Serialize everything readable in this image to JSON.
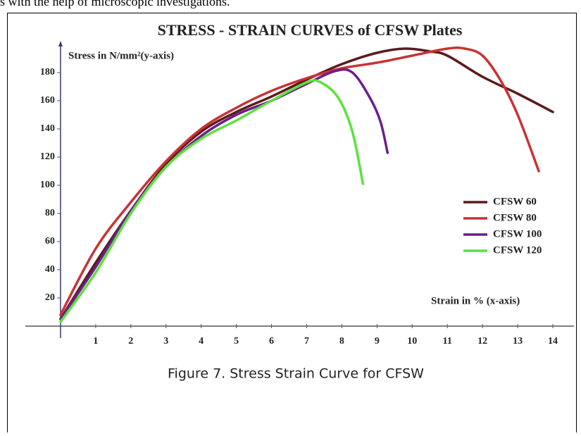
{
  "page_text": "s with the help of microscopic investigations.",
  "caption": "Figure 7. Stress Strain Curve for CFSW",
  "chart_data": {
    "type": "line",
    "title": "STRESS - STRAIN CURVES of CFSW Plates",
    "y_label": "Stress in N/mm²(y-axis)",
    "x_label": "Strain in % (x-axis)",
    "xlim": [
      -1,
      14.6
    ],
    "ylim": [
      -8.5,
      201.5
    ],
    "xticks": [
      1,
      2,
      3,
      4,
      5,
      6,
      7,
      8,
      9,
      10,
      11,
      12,
      13,
      14
    ],
    "yticks": [
      20,
      40,
      60,
      80,
      100,
      120,
      140,
      160,
      180
    ],
    "grid": false,
    "legend": "right",
    "series": [
      {
        "name": "CFSW 60",
        "color": "#5c1a1e",
        "x": [
          0,
          1,
          2,
          3,
          4,
          5,
          6,
          7,
          8,
          9,
          9.8,
          10.5,
          11,
          12,
          13,
          14
        ],
        "values": [
          5,
          45,
          82,
          115,
          138,
          152,
          163,
          175,
          186,
          194,
          197,
          195,
          192,
          177,
          165,
          152
        ]
      },
      {
        "name": "CFSW 80",
        "color": "#c83234",
        "x": [
          0,
          1,
          2,
          3,
          4,
          5,
          6,
          7,
          8,
          9,
          10,
          11,
          11.5,
          12,
          12.5,
          13,
          13.6
        ],
        "values": [
          8,
          55,
          88,
          117,
          140,
          155,
          167,
          176,
          183,
          187,
          192,
          197,
          197,
          192,
          175,
          150,
          110
        ]
      },
      {
        "name": "CFSW 100",
        "color": "#6a1f8c",
        "x": [
          0,
          1,
          2,
          3,
          4,
          5,
          6,
          7,
          7.8,
          8.3,
          8.8,
          9.1,
          9.3
        ],
        "values": [
          5,
          42,
          82,
          113,
          135,
          150,
          160,
          172,
          181,
          180,
          162,
          145,
          123
        ]
      },
      {
        "name": "CFSW 120",
        "color": "#5be23c",
        "x": [
          0,
          1,
          2,
          3,
          4,
          5,
          6,
          7,
          7.4,
          7.9,
          8.3,
          8.6
        ],
        "values": [
          3,
          38,
          80,
          113,
          133,
          146,
          160,
          173,
          173,
          162,
          138,
          101
        ]
      }
    ]
  }
}
